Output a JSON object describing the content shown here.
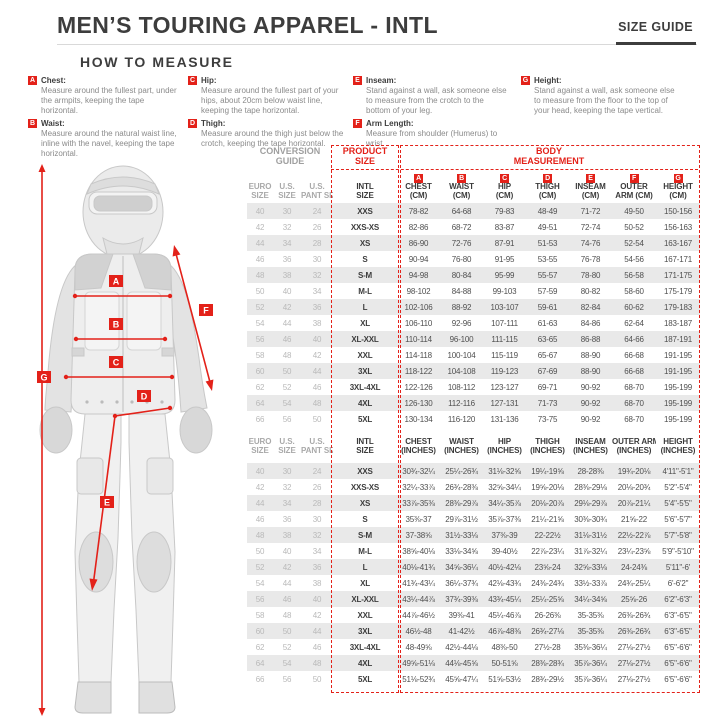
{
  "header": {
    "title": "MEN’S TOURING APPAREL - INTL",
    "size_guide_label": "SIZE GUIDE"
  },
  "colors": {
    "accent_red": "#e32119",
    "stripe_gray": "#e9e9e9",
    "text_dark": "#3d3d3d"
  },
  "how_to_measure": {
    "heading": "HOW TO MEASURE",
    "items": [
      {
        "letter": "A",
        "label": "Chest:",
        "text": "Measure around the fullest part, under the armpits, keeping the tape horizontal."
      },
      {
        "letter": "B",
        "label": "Waist:",
        "text": "Measure around the natural waist line, inline with the navel, keeping the tape horizontal."
      },
      {
        "letter": "C",
        "label": "Hip:",
        "text": "Measure around the fullest part of your hips, about 20cm below waist line, keeping the tape horizontal."
      },
      {
        "letter": "D",
        "label": "Thigh:",
        "text": "Measure around the thigh just below the crotch, keeping the tape horizontal."
      },
      {
        "letter": "E",
        "label": "Inseam:",
        "text": "Stand against a wall, ask someone else to measure from the crotch to the bottom of your leg."
      },
      {
        "letter": "F",
        "label": "Arm Length:",
        "text": "Measure from shoulder (Humerus) to wrist."
      },
      {
        "letter": "G",
        "label": "Height:",
        "text": "Stand against a wall, ask someone else to measure from the floor to the top of your head, keeping the tape vertical."
      }
    ]
  },
  "table_labels": {
    "conversion_guide": "CONVERSION GUIDE",
    "product_size": "PRODUCT SIZE",
    "body_measurement": "BODY MEASUREMENT"
  },
  "figure": {
    "markers": [
      "A",
      "B",
      "C",
      "D",
      "E",
      "F",
      "G"
    ]
  },
  "cm_table": {
    "letters": [
      "A",
      "B",
      "C",
      "D",
      "E",
      "F",
      "G"
    ],
    "headers": [
      [
        "EURO",
        "SIZE"
      ],
      [
        "U.S.",
        "SIZE"
      ],
      [
        "U.S.",
        "PANT SIZE"
      ],
      [
        "INTL",
        "SIZE"
      ],
      [
        "CHEST",
        "(CM)"
      ],
      [
        "WAIST",
        "(CM)"
      ],
      [
        "HIP",
        "(CM)"
      ],
      [
        "THIGH",
        "(CM)"
      ],
      [
        "INSEAM",
        "(CM)"
      ],
      [
        "OUTER",
        "ARM (CM)"
      ],
      [
        "HEIGHT",
        "(CM)"
      ]
    ],
    "rows": [
      [
        "40",
        "30",
        "24",
        "XXS",
        "78-82",
        "64-68",
        "79-83",
        "48-49",
        "71-72",
        "49-50",
        "150-156"
      ],
      [
        "42",
        "32",
        "26",
        "XXS-XS",
        "82-86",
        "68-72",
        "83-87",
        "49-51",
        "72-74",
        "50-52",
        "156-163"
      ],
      [
        "44",
        "34",
        "28",
        "XS",
        "86-90",
        "72-76",
        "87-91",
        "51-53",
        "74-76",
        "52-54",
        "163-167"
      ],
      [
        "46",
        "36",
        "30",
        "S",
        "90-94",
        "76-80",
        "91-95",
        "53-55",
        "76-78",
        "54-56",
        "167-171"
      ],
      [
        "48",
        "38",
        "32",
        "S-M",
        "94-98",
        "80-84",
        "95-99",
        "55-57",
        "78-80",
        "56-58",
        "171-175"
      ],
      [
        "50",
        "40",
        "34",
        "M-L",
        "98-102",
        "84-88",
        "99-103",
        "57-59",
        "80-82",
        "58-60",
        "175-179"
      ],
      [
        "52",
        "42",
        "36",
        "L",
        "102-106",
        "88-92",
        "103-107",
        "59-61",
        "82-84",
        "60-62",
        "179-183"
      ],
      [
        "54",
        "44",
        "38",
        "XL",
        "106-110",
        "92-96",
        "107-111",
        "61-63",
        "84-86",
        "62-64",
        "183-187"
      ],
      [
        "56",
        "46",
        "40",
        "XL-XXL",
        "110-114",
        "96-100",
        "111-115",
        "63-65",
        "86-88",
        "64-66",
        "187-191"
      ],
      [
        "58",
        "48",
        "42",
        "XXL",
        "114-118",
        "100-104",
        "115-119",
        "65-67",
        "88-90",
        "66-68",
        "191-195"
      ],
      [
        "60",
        "50",
        "44",
        "3XL",
        "118-122",
        "104-108",
        "119-123",
        "67-69",
        "88-90",
        "66-68",
        "191-195"
      ],
      [
        "62",
        "52",
        "46",
        "3XL-4XL",
        "122-126",
        "108-112",
        "123-127",
        "69-71",
        "90-92",
        "68-70",
        "195-199"
      ],
      [
        "64",
        "54",
        "48",
        "4XL",
        "126-130",
        "112-116",
        "127-131",
        "71-73",
        "90-92",
        "68-70",
        "195-199"
      ],
      [
        "66",
        "56",
        "50",
        "5XL",
        "130-134",
        "116-120",
        "131-136",
        "73-75",
        "90-92",
        "68-70",
        "195-199"
      ]
    ]
  },
  "inch_table": {
    "headers": [
      [
        "EURO",
        "SIZE"
      ],
      [
        "U.S.",
        "SIZE"
      ],
      [
        "U.S.",
        "PANT SIZE"
      ],
      [
        "INTL",
        "SIZE"
      ],
      [
        "CHEST",
        "(INCHES)"
      ],
      [
        "WAIST",
        "(INCHES)"
      ],
      [
        "HIP",
        "(INCHES)"
      ],
      [
        "THIGH",
        "(INCHES)"
      ],
      [
        "INSEAM",
        "(INCHES)"
      ],
      [
        "OUTER ARM",
        "(INCHES)"
      ],
      [
        "HEIGHT",
        "(INCHES)"
      ]
    ],
    "rows": [
      [
        "40",
        "30",
        "24",
        "XXS",
        "30¾-32¼",
        "25¼-26¾",
        "31⅛-32⅝",
        "19¼-19⅝",
        "28-28⅜",
        "19¾-20⅛",
        "4'11\"-5'1\""
      ],
      [
        "42",
        "32",
        "26",
        "XXS-XS",
        "32¼-33⅞",
        "26¾-28⅜",
        "32⅝-34¼",
        "19⅝-20⅛",
        "28⅜-29⅛",
        "20⅛-20¾",
        "5'2\"-5'4\""
      ],
      [
        "44",
        "34",
        "28",
        "XS",
        "33⅞-35⅜",
        "28⅜-29⅞",
        "34¼-35⅞",
        "20⅛-20⅞",
        "29⅛-29⅞",
        "20⅞-21¼",
        "5'4\"-5'5\""
      ],
      [
        "46",
        "36",
        "30",
        "S",
        "35⅜-37",
        "29⅞-31½",
        "35⅞-37⅜",
        "21¼-21⅝",
        "30⅜-30¾",
        "21⅝-22",
        "5'6\"-5'7\""
      ],
      [
        "48",
        "38",
        "32",
        "S-M",
        "37-38⅝",
        "31½-33⅛",
        "37⅜-39",
        "22-22½",
        "31⅛-31½",
        "22½-22⅞",
        "5'7\"-5'8\""
      ],
      [
        "50",
        "40",
        "34",
        "M-L",
        "38⅝-40⅛",
        "33⅛-34⅝",
        "39-40½",
        "22⅞-23¼",
        "31⅞-32¼",
        "23¼-23⅝",
        "5'9\"-5'10\""
      ],
      [
        "52",
        "42",
        "36",
        "L",
        "40⅛-41¾",
        "34⅝-36¼",
        "40½-42⅛",
        "23⅝-24",
        "32⅝-33⅛",
        "24-24⅜",
        "5'11\"-6'"
      ],
      [
        "54",
        "44",
        "38",
        "XL",
        "41¾-43¼",
        "36¼-37¾",
        "42⅛-43¾",
        "24⅜-24¾",
        "33½-33⅞",
        "24¾-25¼",
        "6'-6'2\""
      ],
      [
        "56",
        "46",
        "40",
        "XL-XXL",
        "43¼-44⅞",
        "37¾-39⅜",
        "43¾-45¼",
        "25¼-25⅝",
        "34¼-34⅝",
        "25⅝-26",
        "6'2\"-6'3\""
      ],
      [
        "58",
        "48",
        "42",
        "XXL",
        "44⅞-46½",
        "39⅜-41",
        "45¼-46⅞",
        "26-26⅜",
        "35-35⅜",
        "26⅜-26¾",
        "6'3\"-6'5\""
      ],
      [
        "60",
        "50",
        "44",
        "3XL",
        "46½-48",
        "41-42½",
        "46⅞-48⅜",
        "26¾-27⅛",
        "35-35⅜",
        "26⅜-26¾",
        "6'3\"-6'5\""
      ],
      [
        "62",
        "52",
        "46",
        "3XL-4XL",
        "48-49⅝",
        "42½-44⅛",
        "48⅜-50",
        "27½-28",
        "35⅜-36¼",
        "27⅛-27½",
        "6'5\"-6'6\""
      ],
      [
        "64",
        "54",
        "48",
        "4XL",
        "49⅝-51⅛",
        "44⅛-45⅝",
        "50-51⅝",
        "28⅜-28¾",
        "35⅞-36¼",
        "27⅛-27½",
        "6'5\"-6'6\""
      ],
      [
        "66",
        "56",
        "50",
        "5XL",
        "51⅛-52¾",
        "45⅝-47¼",
        "51⅝-53½",
        "28¾-29½",
        "35⅞-36¼",
        "27⅛-27½",
        "6'5\"-6'6\""
      ]
    ]
  }
}
